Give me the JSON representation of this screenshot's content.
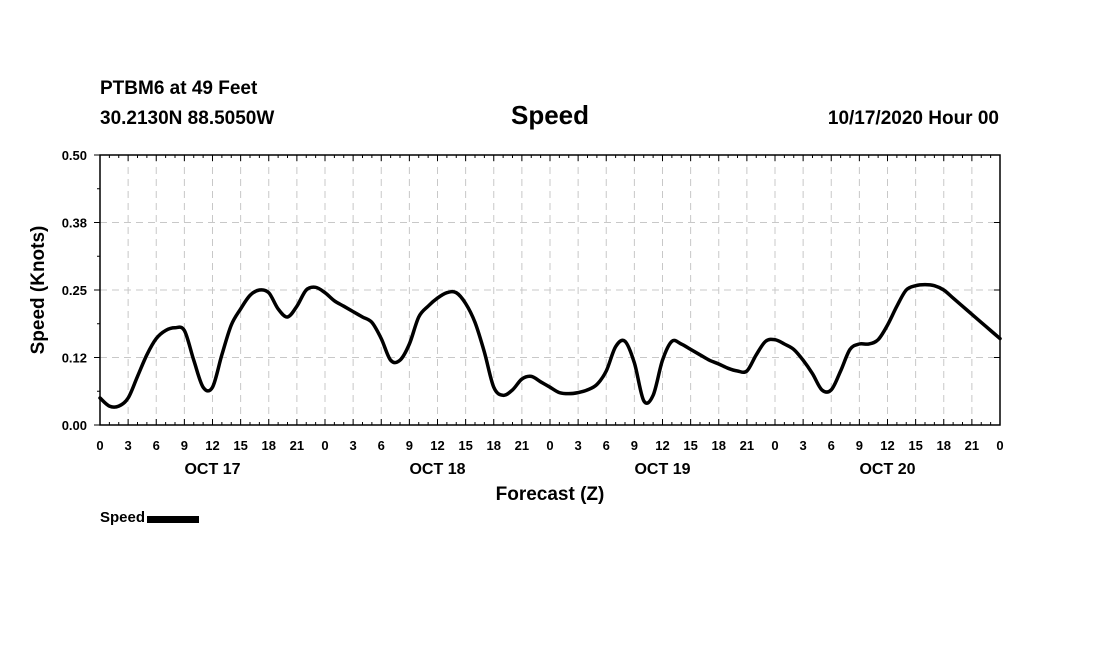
{
  "header": {
    "station": "PTBM6 at 49 Feet",
    "coords": "30.2130N 88.5050W",
    "title": "Speed",
    "datetime": "10/17/2020 Hour 00"
  },
  "legend": {
    "label": "Speed"
  },
  "chart_data": {
    "type": "line",
    "title": "Speed",
    "xlabel": "Forecast (Z)",
    "ylabel": "Speed (Knots)",
    "ylim": [
      0,
      0.5
    ],
    "yticks": [
      0.0,
      0.12,
      0.25,
      0.38,
      0.5
    ],
    "ytick_labels": [
      "0.00",
      "0.12",
      "0.25",
      "0.38",
      "0.50"
    ],
    "xlim": [
      0,
      96
    ],
    "xtick_labels": [
      "0",
      "3",
      "6",
      "9",
      "12",
      "15",
      "18",
      "21",
      "0",
      "3",
      "6",
      "9",
      "12",
      "15",
      "18",
      "21",
      "0",
      "3",
      "6",
      "9",
      "12",
      "15",
      "18",
      "21",
      "0",
      "3",
      "6",
      "9",
      "12",
      "15",
      "18",
      "21",
      "0"
    ],
    "day_labels": [
      "OCT 17",
      "OCT 18",
      "OCT 19",
      "OCT 20"
    ],
    "grid": true,
    "legend_position": "bottom-left",
    "series": [
      {
        "name": "Speed",
        "x": [
          0,
          1,
          2,
          3,
          4,
          5,
          6,
          7,
          8,
          9,
          10,
          11,
          12,
          13,
          14,
          15,
          16,
          17,
          18,
          19,
          20,
          21,
          22,
          23,
          24,
          25,
          26,
          27,
          28,
          29,
          30,
          31,
          32,
          33,
          34,
          35,
          36,
          37,
          38,
          39,
          40,
          41,
          42,
          43,
          44,
          45,
          46,
          47,
          48,
          49,
          50,
          51,
          52,
          53,
          54,
          55,
          56,
          57,
          58,
          59,
          60,
          61,
          62,
          63,
          64,
          65,
          66,
          67,
          68,
          69,
          70,
          71,
          72,
          73,
          74,
          75,
          76,
          77,
          78,
          79,
          80,
          81,
          82,
          83,
          84,
          85,
          86,
          87,
          88,
          89,
          90,
          91,
          92,
          93,
          94,
          95,
          96
        ],
        "values": [
          0.05,
          0.035,
          0.035,
          0.05,
          0.09,
          0.13,
          0.16,
          0.175,
          0.18,
          0.175,
          0.12,
          0.07,
          0.07,
          0.13,
          0.185,
          0.215,
          0.24,
          0.25,
          0.245,
          0.215,
          0.2,
          0.22,
          0.25,
          0.255,
          0.245,
          0.23,
          0.22,
          0.21,
          0.2,
          0.19,
          0.16,
          0.12,
          0.12,
          0.15,
          0.2,
          0.22,
          0.235,
          0.245,
          0.245,
          0.225,
          0.19,
          0.135,
          0.07,
          0.055,
          0.065,
          0.085,
          0.09,
          0.08,
          0.07,
          0.06,
          0.058,
          0.06,
          0.065,
          0.075,
          0.1,
          0.145,
          0.155,
          0.115,
          0.045,
          0.055,
          0.12,
          0.155,
          0.15,
          0.14,
          0.13,
          0.12,
          0.113,
          0.105,
          0.1,
          0.1,
          0.13,
          0.155,
          0.158,
          0.15,
          0.14,
          0.12,
          0.095,
          0.065,
          0.065,
          0.1,
          0.14,
          0.15,
          0.15,
          0.158,
          0.185,
          0.22,
          0.25,
          0.258,
          0.26,
          0.258,
          0.25,
          0.235,
          0.22,
          0.205,
          0.19,
          0.175,
          0.16
        ]
      }
    ]
  }
}
